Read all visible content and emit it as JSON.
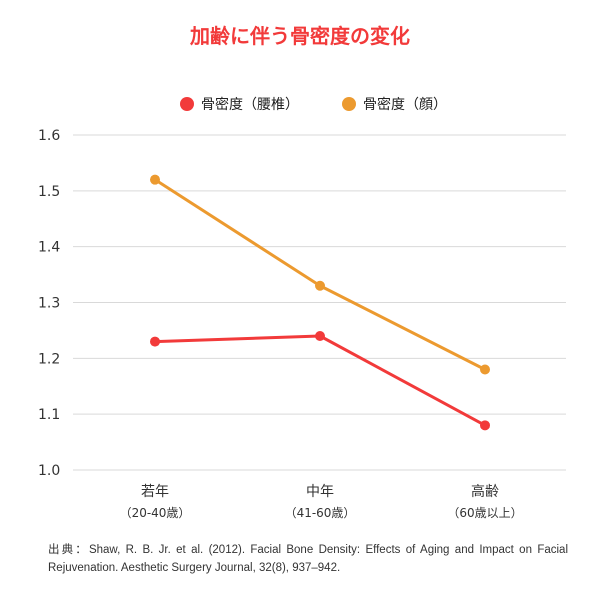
{
  "chart_data": {
    "type": "line",
    "title": "加齢に伴う骨密度の変化",
    "title_color": "#f23a3a",
    "categories": [
      {
        "label": "若年",
        "sublabel": "（20-40歳）"
      },
      {
        "label": "中年",
        "sublabel": "（41-60歳）"
      },
      {
        "label": "高齢",
        "sublabel": "（60歳以上）"
      }
    ],
    "series": [
      {
        "name": "骨密度（腰椎）",
        "color": "#f23a3a",
        "values": [
          1.23,
          1.24,
          1.08
        ]
      },
      {
        "name": "骨密度（顔）",
        "color": "#ec9a2f",
        "values": [
          1.52,
          1.33,
          1.18
        ]
      }
    ],
    "ylim": [
      1.0,
      1.6
    ],
    "yticks": [
      "1.0",
      "1.1",
      "1.2",
      "1.3",
      "1.4",
      "1.5",
      "1.6"
    ],
    "grid": true,
    "legend_position": "top-center"
  },
  "source_note": "出典：Shaw, R. B. Jr. et al. (2012). Facial Bone Density: Effects of Aging and Impact on Facial Rejuvenation. Aesthetic Surgery Journal, 32(8), 937–942."
}
